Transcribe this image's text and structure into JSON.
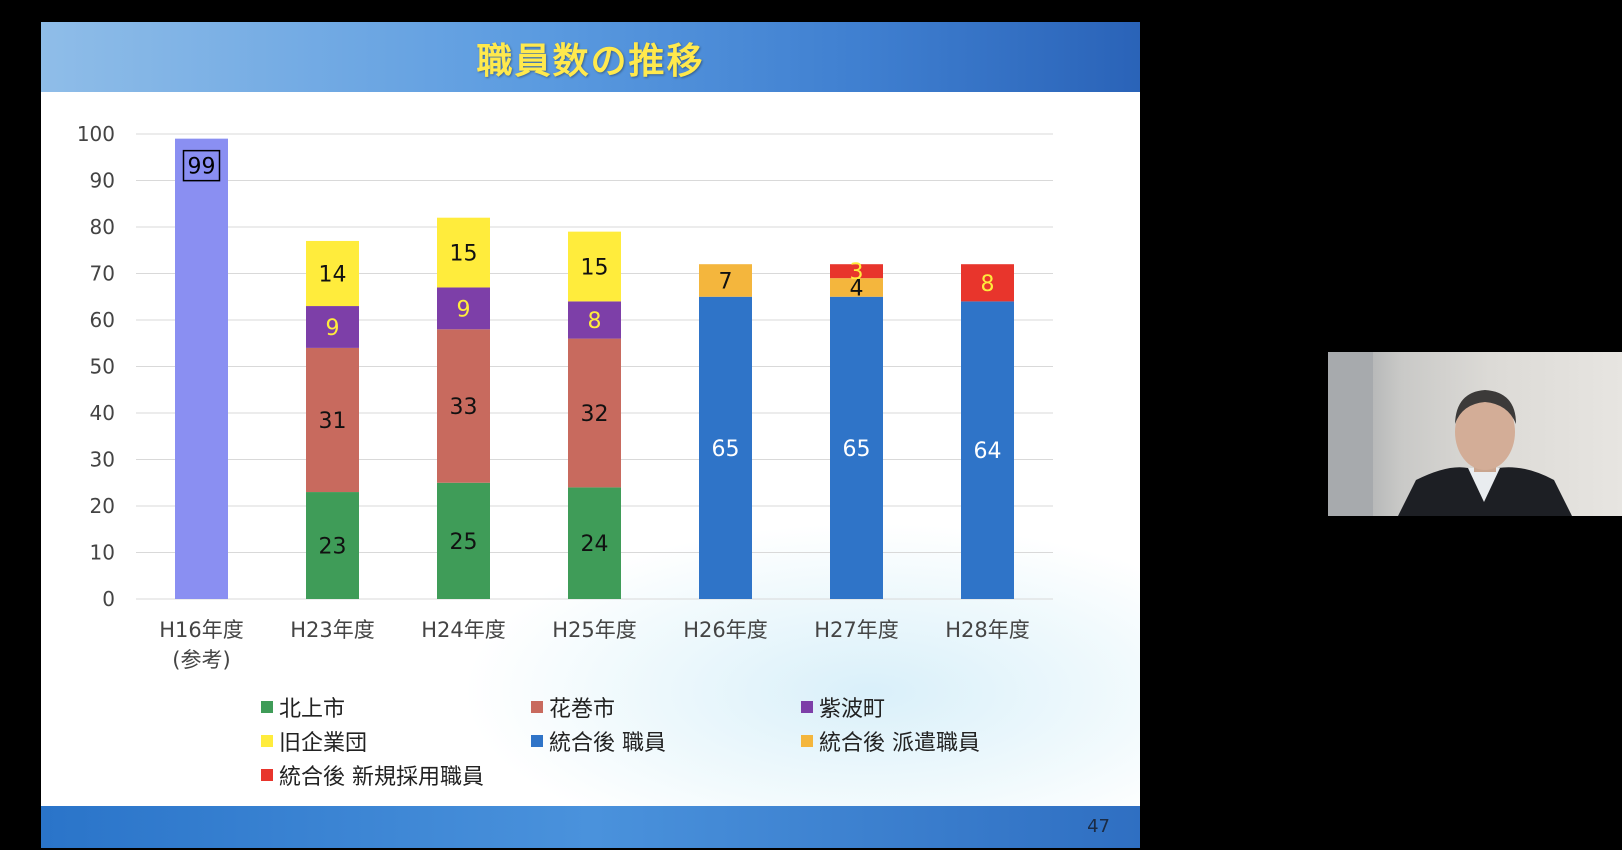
{
  "slide": {
    "title": "職員数の推移",
    "page_number": "47"
  },
  "colors": {
    "kitakami": "#3f9c58",
    "hanamaki": "#c86a5e",
    "shiwa": "#7d3fa8",
    "kyu_kigyodan": "#ffec3c",
    "togo_shokuin": "#2f74c8",
    "togo_haken": "#f4b63d",
    "togo_shinki": "#e8352c",
    "h16_bar": "#8a8ff2"
  },
  "chart_data": {
    "type": "bar",
    "stacked": true,
    "categories": [
      [
        "H16年度",
        "(参考)"
      ],
      [
        "H23年度"
      ],
      [
        "H24年度"
      ],
      [
        "H25年度"
      ],
      [
        "H26年度"
      ],
      [
        "H27年度"
      ],
      [
        "H28年度"
      ]
    ],
    "ylim": [
      0,
      100
    ],
    "yticks": [
      0,
      10,
      20,
      30,
      40,
      50,
      60,
      70,
      80,
      90,
      100
    ],
    "grid": true,
    "legend_position": "bottom",
    "series": [
      {
        "key": "h16",
        "name": "",
        "color": "#8a8ff2",
        "label_color": "#000000",
        "boxed_label": true,
        "in_legend": false,
        "values": [
          99,
          null,
          null,
          null,
          null,
          null,
          null
        ]
      },
      {
        "key": "kitakami",
        "name": "北上市",
        "color": "#3f9c58",
        "label_color": "#111111",
        "in_legend": true,
        "values": [
          null,
          23,
          25,
          24,
          null,
          null,
          null
        ]
      },
      {
        "key": "hanamaki",
        "name": "花巻市",
        "color": "#c86a5e",
        "label_color": "#111111",
        "in_legend": true,
        "values": [
          null,
          31,
          33,
          32,
          null,
          null,
          null
        ]
      },
      {
        "key": "shiwa",
        "name": "紫波町",
        "color": "#7d3fa8",
        "label_color": "#ffec3c",
        "in_legend": true,
        "values": [
          null,
          9,
          9,
          8,
          null,
          null,
          null
        ]
      },
      {
        "key": "kyu_kigyodan",
        "name": "旧企業団",
        "color": "#ffec3c",
        "label_color": "#111111",
        "in_legend": true,
        "values": [
          null,
          14,
          15,
          15,
          null,
          null,
          null
        ]
      },
      {
        "key": "togo_shokuin",
        "name": "統合後 職員",
        "color": "#2f74c8",
        "label_color": "#ffffff",
        "in_legend": true,
        "values": [
          null,
          null,
          null,
          null,
          65,
          65,
          64
        ]
      },
      {
        "key": "togo_haken",
        "name": "統合後 派遣職員",
        "color": "#f4b63d",
        "label_color": "#111111",
        "in_legend": true,
        "values": [
          null,
          null,
          null,
          null,
          7,
          4,
          null
        ]
      },
      {
        "key": "togo_shinki",
        "name": "統合後 新規採用職員",
        "color": "#e8352c",
        "label_color": "#ffec3c",
        "in_legend": true,
        "values": [
          null,
          null,
          null,
          null,
          null,
          3,
          8
        ]
      }
    ]
  }
}
